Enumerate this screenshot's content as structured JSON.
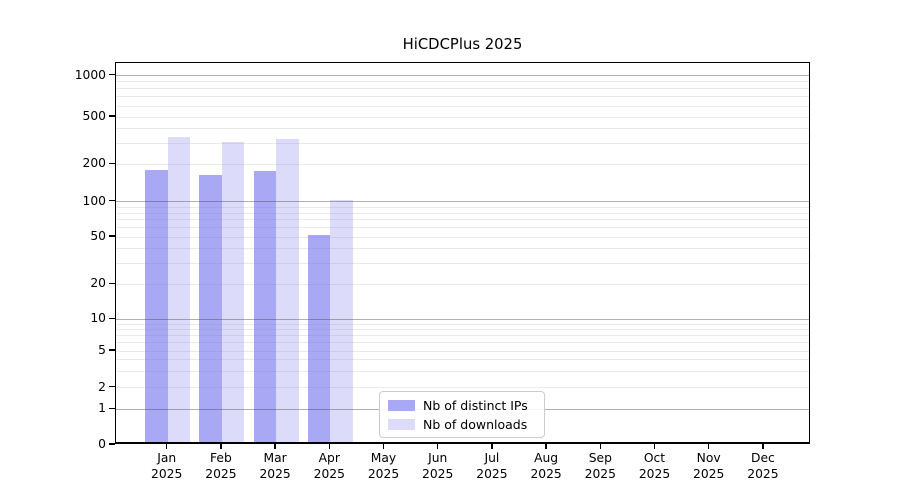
{
  "title": "HiCDCPlus 2025",
  "year": "2025",
  "months": [
    "Jan",
    "Feb",
    "Mar",
    "Apr",
    "May",
    "Jun",
    "Jul",
    "Aug",
    "Sep",
    "Oct",
    "Nov",
    "Dec"
  ],
  "legend": {
    "items": [
      {
        "label": "Nb of distinct IPs",
        "color": "#a8a8f5"
      },
      {
        "label": "Nb of downloads",
        "color": "#dcdcfa"
      }
    ]
  },
  "colors": {
    "bar_distinct_ips": "#a8a8f5",
    "bar_downloads": "#dcdcfa",
    "grid_major": "#b5b5b5",
    "grid_minor": "#e8e8e8",
    "axis": "#000000",
    "legend_border": "#cccccc",
    "text": "#000000",
    "background": "#ffffff"
  },
  "chart_data": {
    "type": "bar",
    "title": "HiCDCPlus 2025",
    "categories": [
      "Jan 2025",
      "Feb 2025",
      "Mar 2025",
      "Apr 2025",
      "May 2025",
      "Jun 2025",
      "Jul 2025",
      "Aug 2025",
      "Sep 2025",
      "Oct 2025",
      "Nov 2025",
      "Dec 2025"
    ],
    "series": [
      {
        "name": "Nb of distinct IPs",
        "color": "#a8a8f5",
        "values": [
          170,
          156,
          168,
          49,
          null,
          null,
          null,
          null,
          null,
          null,
          null,
          null
        ]
      },
      {
        "name": "Nb of downloads",
        "color": "#dcdcfa",
        "values": [
          318,
          290,
          310,
          97,
          null,
          null,
          null,
          null,
          null,
          null,
          null,
          null
        ]
      }
    ],
    "xlabel": "",
    "ylabel": "",
    "yscale": "log with zero baseline",
    "yticks": [
      0,
      1,
      2,
      5,
      10,
      20,
      50,
      100,
      200,
      500,
      1000
    ],
    "ylim": [
      0,
      1260
    ],
    "grid": "horizontal major and minor lines, drawn over bars",
    "legend_position": "lower center"
  }
}
